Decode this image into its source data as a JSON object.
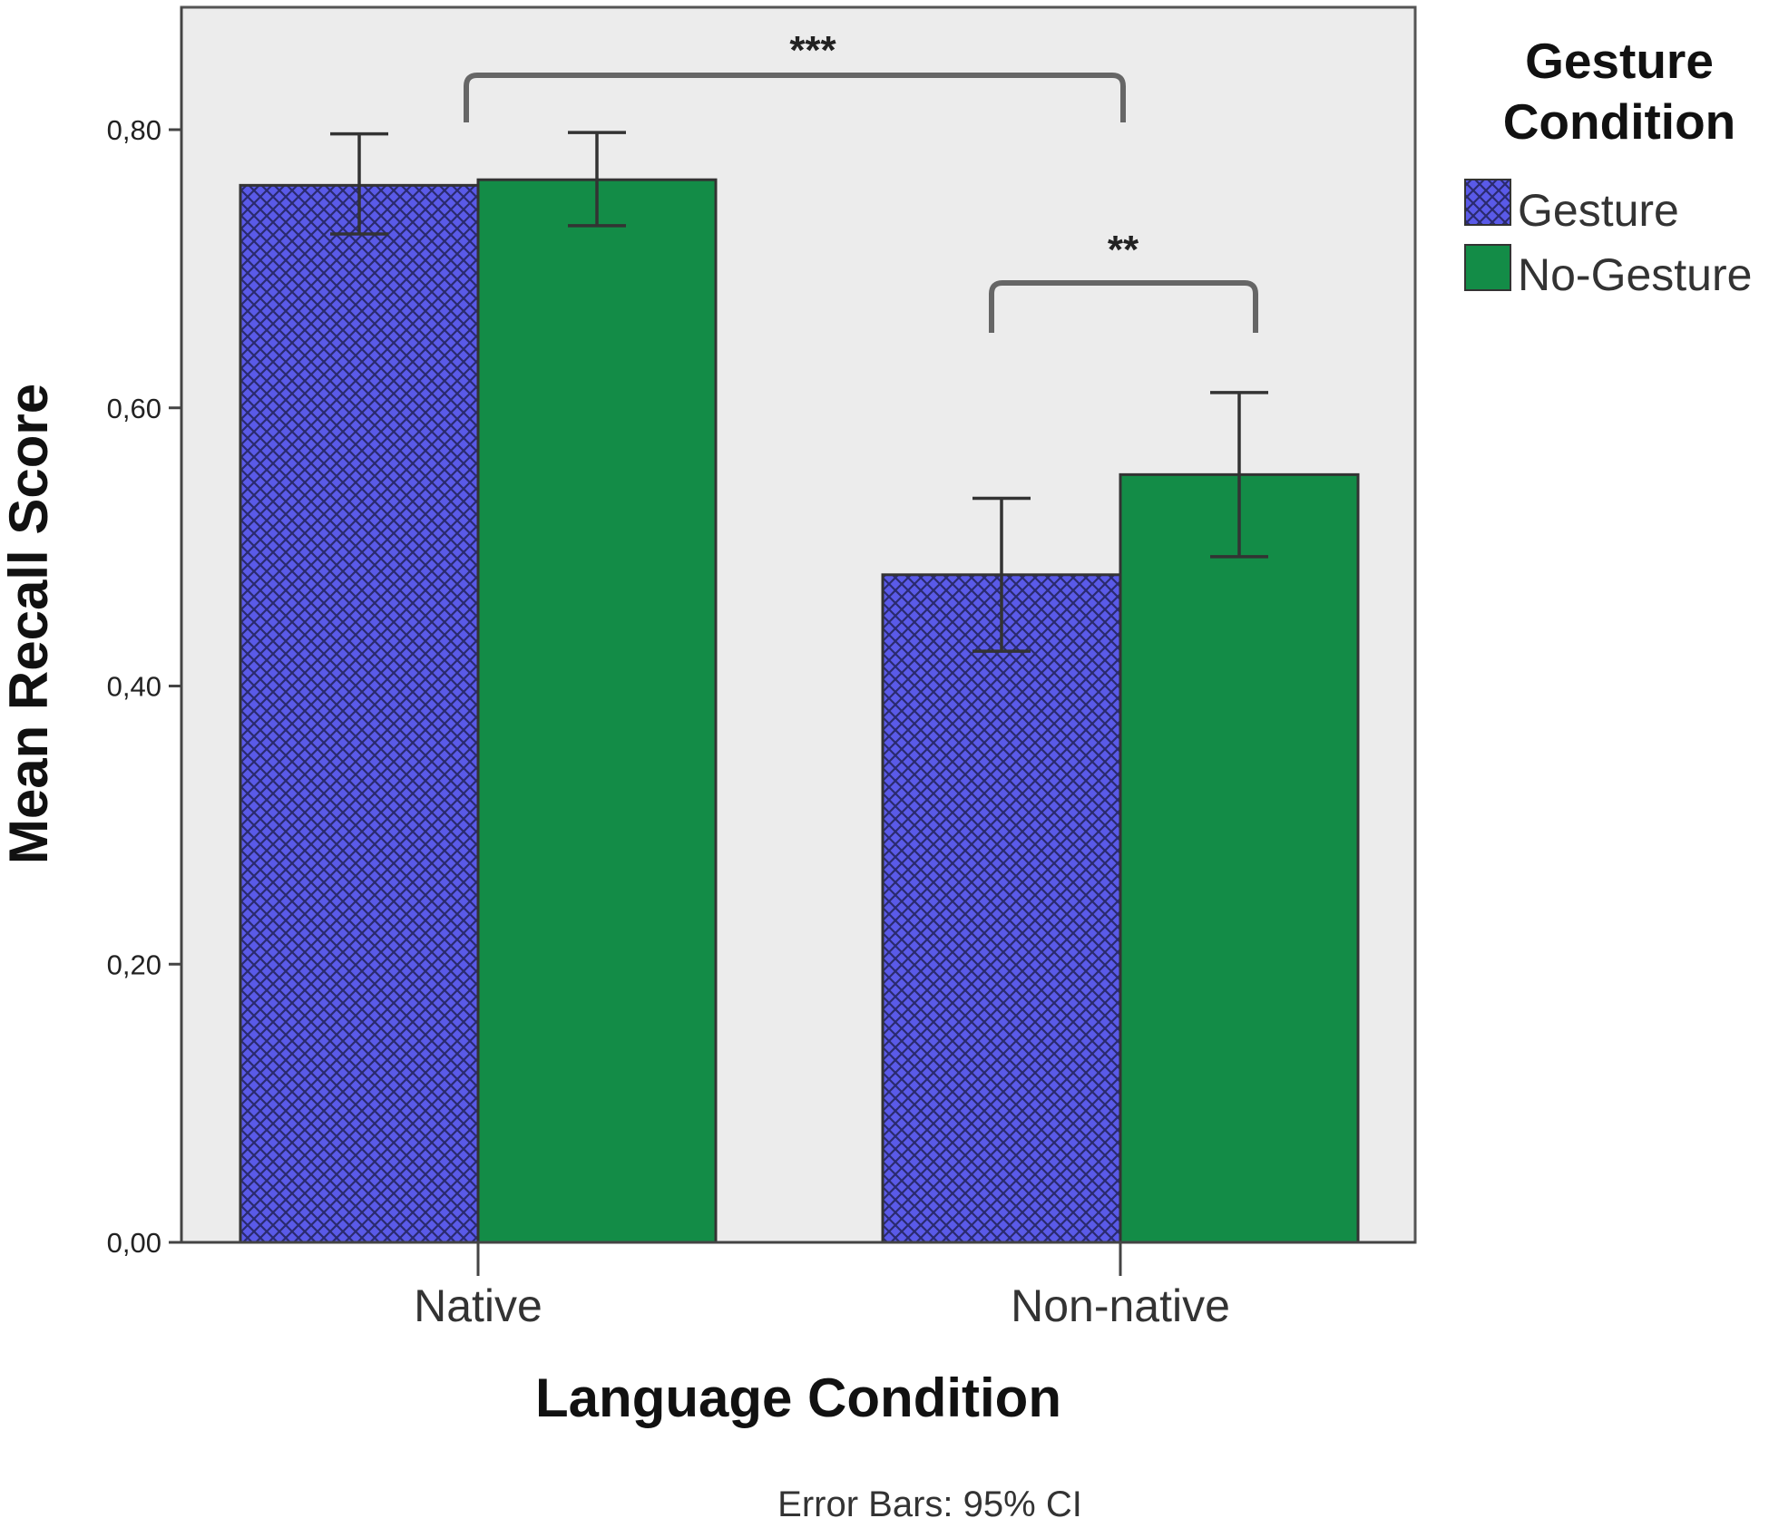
{
  "chart_data": {
    "type": "bar",
    "xlabel": "Language Condition",
    "ylabel": "Mean Recall Score",
    "categories": [
      "Native",
      "Non-native"
    ],
    "ylim": [
      0,
      0.8
    ],
    "yticks": [
      0,
      0.2,
      0.4,
      0.6,
      0.8
    ],
    "ytick_labels": [
      "0,00",
      "0,20",
      "0,40",
      "0,60",
      "0,80"
    ],
    "series": [
      {
        "name": "Gesture",
        "values": [
          0.76,
          0.48
        ],
        "ci_low": [
          0.725,
          0.425
        ],
        "ci_high": [
          0.797,
          0.535
        ],
        "color": "#5a5ae8",
        "pattern": "crosshatch"
      },
      {
        "name": "No-Gesture",
        "values": [
          0.764,
          0.552
        ],
        "ci_low": [
          0.731,
          0.493
        ],
        "ci_high": [
          0.798,
          0.611
        ],
        "color": "#138c47",
        "pattern": "solid"
      }
    ],
    "legend": {
      "title": "Gesture Condition",
      "title_lines": [
        "Gesture",
        "Condition"
      ],
      "position": "right"
    },
    "footnote": "Error Bars: 95% CI",
    "grid": false,
    "annotations": [
      {
        "label": "***",
        "between": "Native vs Non-native"
      },
      {
        "label": "**",
        "between": "Non-native Gesture vs No-Gesture"
      }
    ],
    "plot_background": "#ececec"
  }
}
